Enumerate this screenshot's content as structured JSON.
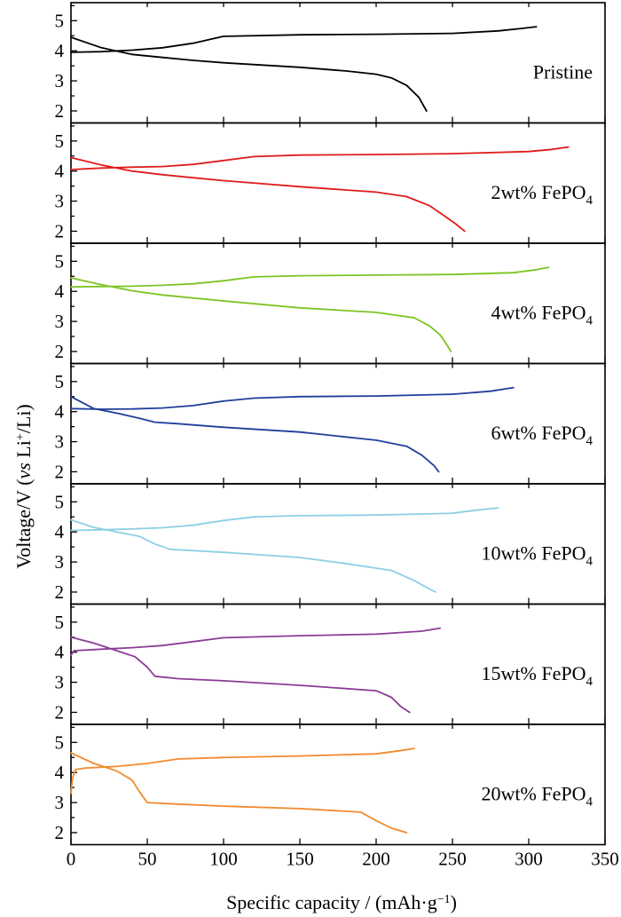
{
  "chart_data": {
    "type": "line",
    "layout": "stacked-panels",
    "xlabel": {
      "main": "Specific capacity / (mAh·g",
      "sup": "−1",
      "tail": ")"
    },
    "ylabel": {
      "pre": "Voltage/V (",
      "italic": "vs",
      "mid": " Li",
      "sup": "+",
      "tail": "/Li)"
    },
    "xlim": [
      0,
      350
    ],
    "ylim": [
      1.6,
      5.6
    ],
    "xticks": [
      0,
      50,
      100,
      150,
      200,
      250,
      300,
      350
    ],
    "yticks": [
      2,
      3,
      4,
      5
    ],
    "grid": false,
    "panels": [
      {
        "label": "Pristine",
        "label_sub": "",
        "color": "#000000",
        "charge": {
          "x": [
            0,
            20,
            40,
            60,
            80,
            100,
            150,
            200,
            250,
            280,
            295,
            305
          ],
          "y": [
            3.95,
            3.97,
            4.02,
            4.1,
            4.25,
            4.48,
            4.53,
            4.55,
            4.58,
            4.66,
            4.74,
            4.8
          ]
        },
        "discharge": {
          "x": [
            0,
            20,
            40,
            60,
            80,
            100,
            150,
            180,
            200,
            210,
            220,
            228,
            233
          ],
          "y": [
            4.45,
            4.1,
            3.88,
            3.78,
            3.68,
            3.6,
            3.45,
            3.33,
            3.22,
            3.1,
            2.85,
            2.45,
            2.0
          ]
        }
      },
      {
        "label": "2wt%",
        "label_sub": "FePO4",
        "color": "#e01b1b",
        "charge": {
          "x": [
            0,
            20,
            40,
            60,
            80,
            100,
            120,
            150,
            200,
            250,
            300,
            315,
            326
          ],
          "y": [
            4.05,
            4.1,
            4.13,
            4.15,
            4.22,
            4.35,
            4.48,
            4.53,
            4.55,
            4.58,
            4.65,
            4.72,
            4.8
          ]
        },
        "discharge": {
          "x": [
            0,
            20,
            40,
            60,
            80,
            100,
            150,
            200,
            220,
            235,
            245,
            252,
            258
          ],
          "y": [
            4.45,
            4.2,
            4.0,
            3.88,
            3.78,
            3.68,
            3.48,
            3.3,
            3.15,
            2.85,
            2.5,
            2.25,
            2.0
          ]
        }
      },
      {
        "label": "4wt%",
        "label_sub": "FePO4",
        "color": "#7cc424",
        "charge": {
          "x": [
            0,
            20,
            40,
            60,
            80,
            100,
            120,
            150,
            200,
            250,
            290,
            305,
            313
          ],
          "y": [
            4.15,
            4.16,
            4.17,
            4.2,
            4.25,
            4.35,
            4.48,
            4.52,
            4.54,
            4.56,
            4.62,
            4.72,
            4.8
          ]
        },
        "discharge": {
          "x": [
            0,
            20,
            40,
            60,
            80,
            100,
            150,
            200,
            225,
            235,
            242,
            246,
            249
          ],
          "y": [
            4.45,
            4.22,
            4.02,
            3.88,
            3.78,
            3.68,
            3.45,
            3.3,
            3.12,
            2.85,
            2.55,
            2.25,
            2.0
          ]
        }
      },
      {
        "label": "6wt%",
        "label_sub": "FePO4",
        "color": "#1f3f9b",
        "charge": {
          "x": [
            0,
            20,
            40,
            60,
            80,
            100,
            120,
            150,
            200,
            250,
            275,
            290
          ],
          "y": [
            4.1,
            4.08,
            4.09,
            4.12,
            4.2,
            4.35,
            4.45,
            4.5,
            4.52,
            4.58,
            4.68,
            4.8
          ]
        },
        "discharge": {
          "x": [
            0,
            15,
            30,
            45,
            55,
            70,
            100,
            150,
            200,
            220,
            230,
            238,
            241
          ],
          "y": [
            4.5,
            4.1,
            3.95,
            3.78,
            3.65,
            3.6,
            3.48,
            3.32,
            3.05,
            2.85,
            2.55,
            2.2,
            2.0
          ]
        }
      },
      {
        "label": "10wt%",
        "label_sub": "FePO4",
        "color": "#8dcfe6",
        "charge": {
          "x": [
            0,
            20,
            40,
            60,
            80,
            100,
            120,
            150,
            200,
            250,
            265,
            280
          ],
          "y": [
            4.05,
            4.07,
            4.1,
            4.14,
            4.22,
            4.38,
            4.5,
            4.54,
            4.56,
            4.62,
            4.72,
            4.8
          ]
        },
        "discharge": {
          "x": [
            0,
            15,
            30,
            45,
            55,
            65,
            100,
            150,
            180,
            210,
            225,
            235,
            239
          ],
          "y": [
            4.4,
            4.15,
            4.0,
            3.85,
            3.6,
            3.42,
            3.32,
            3.15,
            2.95,
            2.72,
            2.38,
            2.1,
            2.0
          ]
        }
      },
      {
        "label": "15wt%",
        "label_sub": "FePO4",
        "color": "#8b3c96",
        "charge": {
          "x": [
            0,
            2,
            20,
            40,
            60,
            80,
            100,
            150,
            200,
            230,
            242
          ],
          "y": [
            3.9,
            4.05,
            4.1,
            4.15,
            4.22,
            4.35,
            4.48,
            4.55,
            4.6,
            4.7,
            4.8
          ]
        },
        "discharge": {
          "x": [
            0,
            15,
            30,
            42,
            50,
            55,
            70,
            100,
            150,
            200,
            210,
            216,
            222
          ],
          "y": [
            4.5,
            4.3,
            4.05,
            3.85,
            3.5,
            3.2,
            3.12,
            3.05,
            2.9,
            2.72,
            2.5,
            2.2,
            2.0
          ]
        }
      },
      {
        "label": "20wt%",
        "label_sub": "FePO4",
        "color": "#f28a2e",
        "charge": {
          "x": [
            0,
            1,
            3,
            10,
            30,
            50,
            70,
            100,
            150,
            200,
            215,
            225
          ],
          "y": [
            3.3,
            3.8,
            4.1,
            4.15,
            4.2,
            4.3,
            4.45,
            4.5,
            4.55,
            4.62,
            4.72,
            4.8
          ]
        },
        "discharge": {
          "x": [
            0,
            15,
            30,
            40,
            45,
            50,
            70,
            100,
            150,
            190,
            200,
            210,
            220
          ],
          "y": [
            4.65,
            4.3,
            4.05,
            3.75,
            3.35,
            3.0,
            2.95,
            2.88,
            2.8,
            2.68,
            2.4,
            2.15,
            2.0
          ]
        }
      }
    ]
  }
}
